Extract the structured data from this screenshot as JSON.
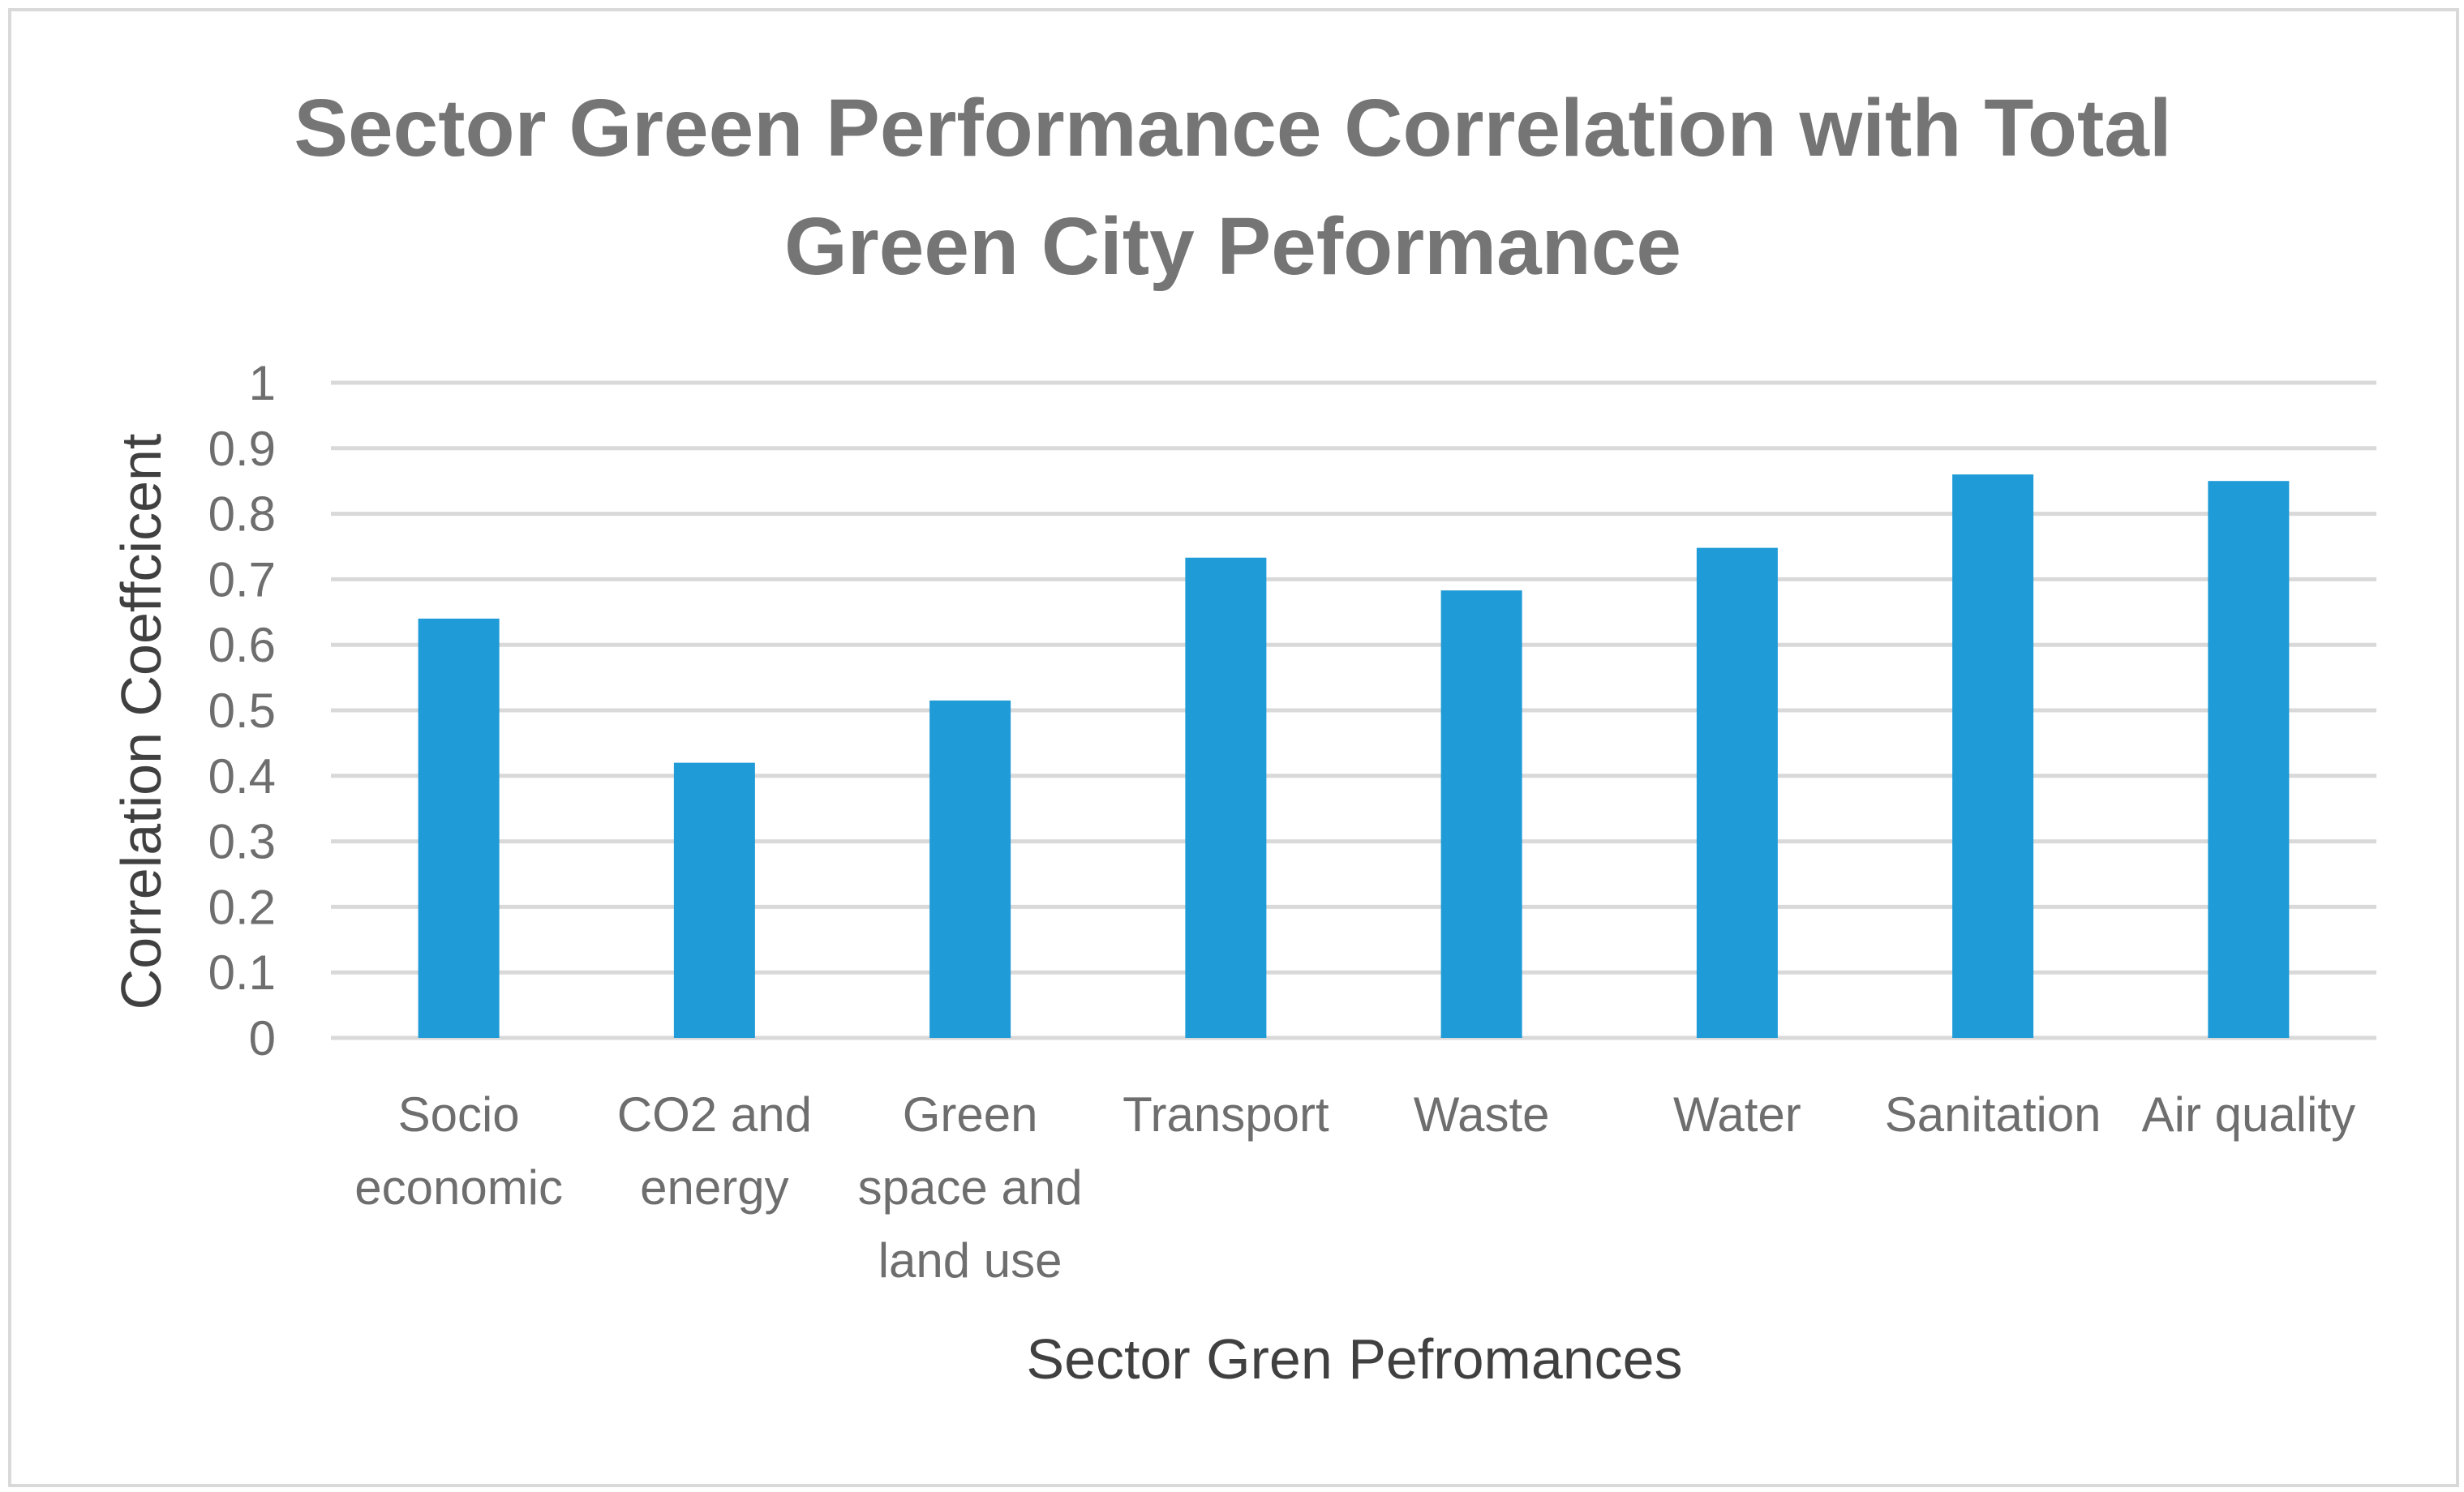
{
  "chart_data": {
    "type": "bar",
    "title_lines": [
      "Sector Green Performance Correlation with Total",
      "Green City Peformance"
    ],
    "xlabel": "Sector Gren Pefromances",
    "ylabel": "Correlation Coeffcicent",
    "ylim": [
      0,
      1
    ],
    "yticks": [
      0,
      0.1,
      0.2,
      0.3,
      0.4,
      0.5,
      0.6,
      0.7,
      0.8,
      0.9,
      1
    ],
    "ytick_labels": [
      "0",
      "0.1",
      "0.2",
      "0.3",
      "0.4",
      "0.5",
      "0.6",
      "0.7",
      "0.8",
      "0.9",
      "1"
    ],
    "grid": true,
    "legend": "none",
    "categories": [
      [
        "Socio",
        "economic"
      ],
      [
        "CO2 and",
        "energy"
      ],
      [
        "Green",
        "space and",
        "land use"
      ],
      [
        "Transport"
      ],
      [
        "Waste"
      ],
      [
        "Water"
      ],
      [
        "Sanitation"
      ],
      [
        "Air quality"
      ]
    ],
    "values": [
      0.64,
      0.42,
      0.515,
      0.733,
      0.683,
      0.748,
      0.86,
      0.85
    ],
    "bar_color": "#1f9bd7",
    "grid_color": "#d9d9d9"
  }
}
